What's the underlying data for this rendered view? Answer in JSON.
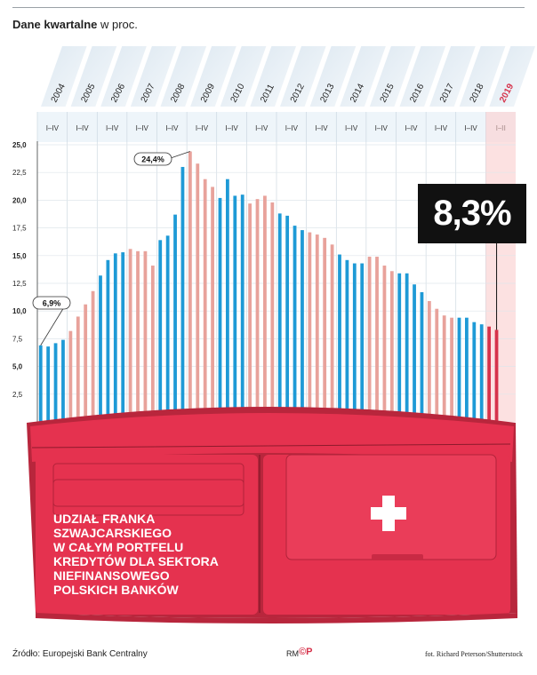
{
  "header": {
    "title": "Dane kwartalne",
    "unit": "w proc."
  },
  "footer": {
    "source": "Źródło: Europejski Bank Centralny",
    "rm": "RM",
    "cp": "©P",
    "photo": "fot. Richard Peterson/Shutterstock"
  },
  "wallet_text": "UDZIAŁ FRANKA\nSZWAJCARSKIEGO\nW CAŁYM PORTFELU\nKREDYTÓW DLA SEKTORA\nNIEFINANSOWEGO\nPOLSKICH BANKÓW",
  "callouts": {
    "first": "6,9%",
    "peak": "24,4%",
    "last": "8,3%"
  },
  "colors": {
    "blue": "#1e9ad6",
    "pink": "#e8a29b",
    "red": "#d6334b",
    "wallet": "#e5324f",
    "highlight": "#fbd4d4"
  },
  "chart_data": {
    "type": "bar",
    "title": "Dane kwartalne",
    "ylabel": "w proc.",
    "ylim": [
      0,
      25
    ],
    "yticks": [
      "2,5",
      "5,0",
      "7,5",
      "10,0",
      "12,5",
      "15,0",
      "17,5",
      "20,0",
      "22,5",
      "25,0"
    ],
    "years": [
      "2004",
      "2005",
      "2006",
      "2007",
      "2008",
      "2009",
      "2010",
      "2011",
      "2012",
      "2013",
      "2014",
      "2015",
      "2016",
      "2017",
      "2018",
      "2019"
    ],
    "quarter_labels": [
      "I–IV",
      "I–IV",
      "I–IV",
      "I–IV",
      "I–IV",
      "I–IV",
      "I–IV",
      "I–IV",
      "I–IV",
      "I–IV",
      "I–IV",
      "I–IV",
      "I–IV",
      "I–IV",
      "I–IV",
      "I–II"
    ],
    "values": [
      6.9,
      6.8,
      7.1,
      7.4,
      8.2,
      9.5,
      10.6,
      11.8,
      13.2,
      14.6,
      15.2,
      15.3,
      15.6,
      15.4,
      15.4,
      14.1,
      16.4,
      16.8,
      18.7,
      23.0,
      24.4,
      23.3,
      21.9,
      21.2,
      20.2,
      21.9,
      20.4,
      20.5,
      19.7,
      20.1,
      20.4,
      19.8,
      18.8,
      18.6,
      17.7,
      17.3,
      17.1,
      16.9,
      16.6,
      16.0,
      15.1,
      14.6,
      14.3,
      14.3,
      14.9,
      14.9,
      14.1,
      13.6,
      13.4,
      13.4,
      12.4,
      11.7,
      10.9,
      10.2,
      9.6,
      9.4,
      9.4,
      9.4,
      9.0,
      8.8,
      8.6,
      8.3
    ]
  }
}
